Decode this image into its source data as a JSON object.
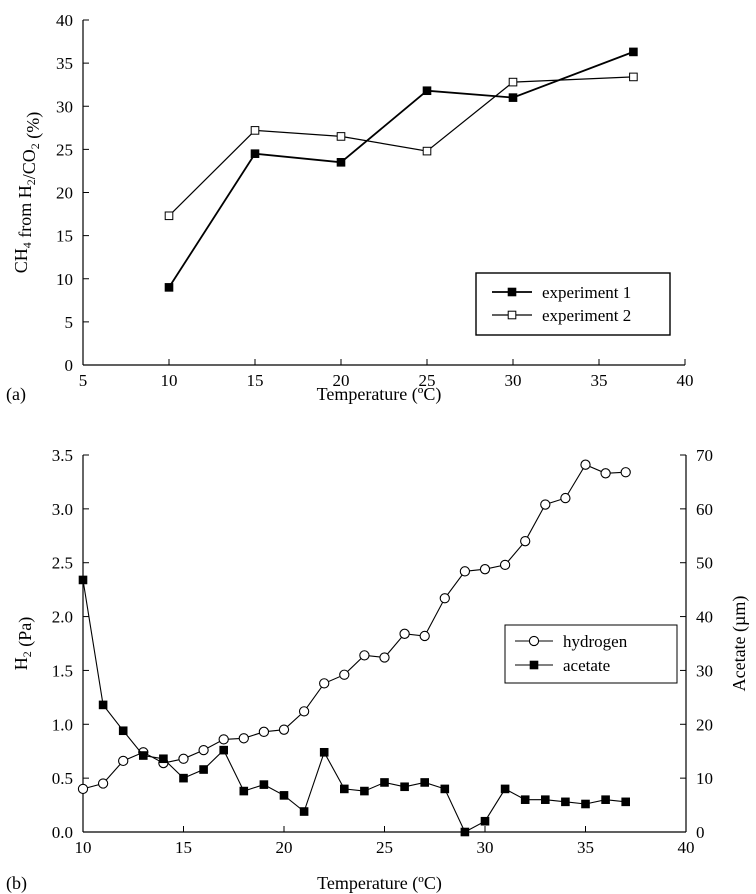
{
  "chart_data": [
    {
      "type": "line",
      "panel_label": "(a)",
      "xlabel": "Temperature (ºC)",
      "ylabel": "CH4 from H2/CO2 (%)",
      "xlim": [
        5,
        40
      ],
      "ylim": [
        0,
        40
      ],
      "x_ticks": [
        "5",
        "10",
        "15",
        "20",
        "25",
        "30",
        "35",
        "40"
      ],
      "y_ticks": [
        "0",
        "5",
        "10",
        "15",
        "20",
        "25",
        "30",
        "35",
        "40"
      ],
      "grid": false,
      "legend_position": "bottom-right",
      "x": [
        10,
        15,
        20,
        25,
        30,
        37
      ],
      "series": [
        {
          "name": "experiment 1",
          "values": [
            9.0,
            24.5,
            23.5,
            31.8,
            31.0,
            36.3
          ],
          "marker": "filled-square",
          "color": "#000000"
        },
        {
          "name": "experiment 2",
          "values": [
            17.3,
            27.2,
            26.5,
            24.8,
            32.8,
            33.4
          ],
          "marker": "open-square",
          "color": "#000000"
        }
      ]
    },
    {
      "type": "line",
      "panel_label": "(b)",
      "xlabel": "Temperature (ºC)",
      "ylabel": "H2 (Pa)",
      "y2label": "Acetate (µm)",
      "xlim": [
        10,
        40
      ],
      "ylim": [
        0,
        3.5
      ],
      "y2lim": [
        0,
        70
      ],
      "x_ticks": [
        "10",
        "15",
        "20",
        "25",
        "30",
        "35",
        "40"
      ],
      "y_ticks": [
        "0.0",
        "0.5",
        "1.0",
        "1.5",
        "2.0",
        "2.5",
        "3.0",
        "3.5"
      ],
      "y2_ticks": [
        "0",
        "10",
        "20",
        "30",
        "40",
        "50",
        "60",
        "70"
      ],
      "grid": false,
      "legend_position": "right",
      "series": [
        {
          "name": "hydrogen",
          "axis": "left",
          "marker": "open-circle",
          "color": "#000000",
          "x": [
            10,
            11,
            12,
            13,
            14,
            15,
            16,
            17,
            18,
            19,
            20,
            21,
            22,
            23,
            24,
            25,
            26,
            27,
            28,
            29,
            30,
            31,
            32,
            33,
            34,
            35,
            36,
            37
          ],
          "values": [
            0.4,
            0.45,
            0.66,
            0.74,
            0.64,
            0.68,
            0.76,
            0.86,
            0.87,
            0.93,
            0.95,
            1.12,
            1.38,
            1.46,
            1.64,
            1.62,
            1.84,
            1.82,
            2.17,
            2.42,
            2.44,
            2.48,
            2.7,
            3.04,
            3.1,
            3.41,
            3.33,
            3.34
          ]
        },
        {
          "name": "acetate",
          "axis": "right",
          "marker": "filled-square",
          "color": "#000000",
          "x": [
            10,
            11,
            12,
            13,
            14,
            15,
            16,
            17,
            18,
            19,
            20,
            21,
            22,
            23,
            24,
            25,
            26,
            27,
            28,
            29,
            30,
            31,
            32,
            33,
            34,
            35,
            36,
            37
          ],
          "values": [
            46.8,
            23.6,
            18.8,
            14.2,
            13.6,
            10.0,
            11.6,
            15.2,
            7.6,
            8.8,
            6.8,
            3.8,
            14.8,
            8.0,
            7.6,
            9.2,
            8.4,
            9.2,
            8.0,
            0.0,
            2.0,
            8.0,
            6.0,
            6.0,
            5.6,
            5.2,
            6.0,
            5.6
          ]
        }
      ]
    }
  ]
}
